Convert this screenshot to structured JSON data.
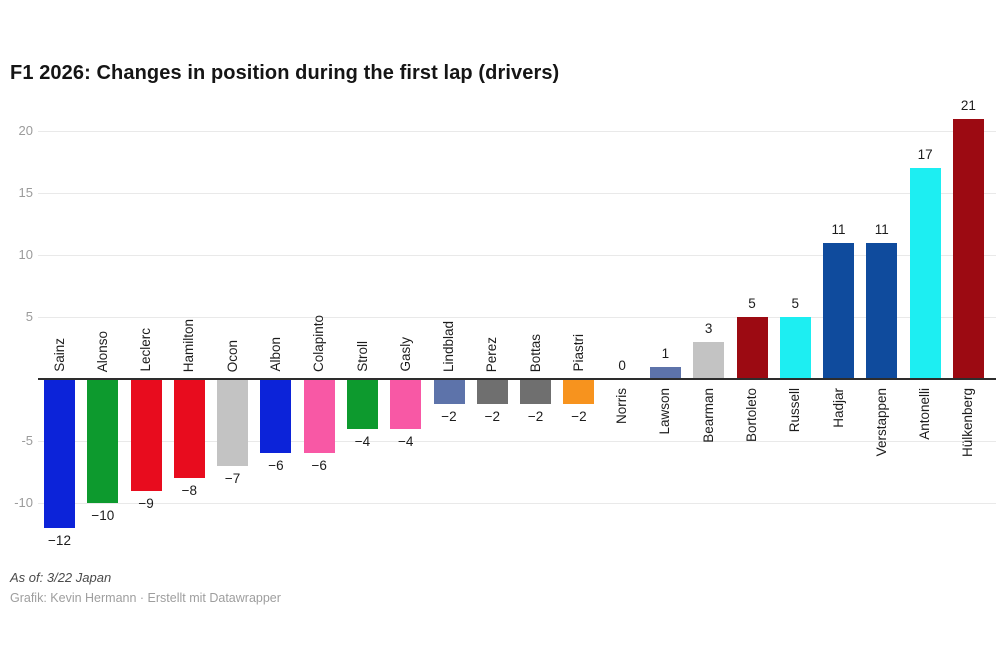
{
  "title": "F1 2026: Changes in position during the first lap (drivers)",
  "footer": {
    "note": "As of: 3/22 Japan",
    "credit": "Grafik: Kevin Hermann · Erstellt mit Datawrapper"
  },
  "chart_data": {
    "type": "bar",
    "title": "F1 2026: Changes in position during the first lap (drivers)",
    "categories": [
      "Sainz",
      "Alonso",
      "Leclerc",
      "Hamilton",
      "Ocon",
      "Albon",
      "Colapinto",
      "Stroll",
      "Gasly",
      "Lindblad",
      "Perez",
      "Bottas",
      "Piastri",
      "Norris",
      "Lawson",
      "Bearman",
      "Bortoleto",
      "Russell",
      "Hadjar",
      "Verstappen",
      "Antonelli",
      "Hülkenberg"
    ],
    "values": [
      -12,
      -10,
      -9,
      -8,
      -7,
      -6,
      -6,
      -4,
      -4,
      -2,
      -2,
      -2,
      -2,
      0,
      1,
      3,
      5,
      5,
      11,
      11,
      17,
      21
    ],
    "bar_colors": [
      "#0c23d9",
      "#0d9a2e",
      "#e80c1e",
      "#e80c1e",
      "#c3c3c3",
      "#0c23d9",
      "#f858a5",
      "#0d9a2e",
      "#f858a5",
      "#5d73aa",
      "#6f6f6f",
      "#6f6f6f",
      "#f7931e",
      "#f7931e",
      "#5d73aa",
      "#c3c3c3",
      "#9c0a12",
      "#1deef2",
      "#0f4b9d",
      "#0f4b9d",
      "#1deef2",
      "#9c0a12"
    ],
    "xlabel": "",
    "ylabel": "",
    "yticks": [
      20,
      15,
      10,
      5,
      -5,
      -10
    ],
    "ylim": [
      -14,
      22
    ],
    "grid": "horizontal",
    "legend": "none",
    "data_labels": true
  }
}
